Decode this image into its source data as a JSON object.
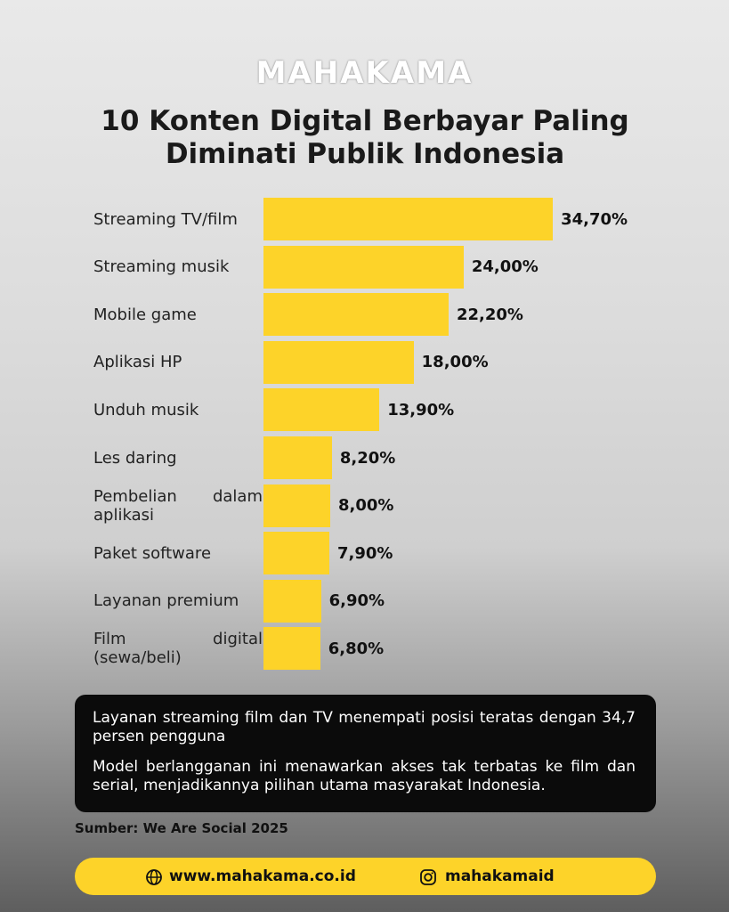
{
  "brand": "MAHAKAMA",
  "chart_data": {
    "type": "bar",
    "orientation": "horizontal",
    "title": "10 Konten Digital Berbayar Paling Diminati Publik Indonesia",
    "categories": [
      "Streaming TV/film",
      "Streaming musik",
      "Mobile game",
      "Aplikasi HP",
      "Unduh musik",
      "Les daring",
      "Pembelian dalam aplikasi",
      "Paket software",
      "Layanan premium",
      "Film digital (sewa/beli)"
    ],
    "values": [
      34.7,
      24.0,
      22.2,
      18.0,
      13.9,
      8.2,
      8.0,
      7.9,
      6.9,
      6.8
    ],
    "value_labels": [
      "34,70%",
      "24,00%",
      "22,20%",
      "18,00%",
      "13,90%",
      "8,20%",
      "8,00%",
      "7,90%",
      "6,90%",
      "6,80%"
    ],
    "color": "#fdd329"
  },
  "notes": [
    "Layanan streaming film dan TV menempati posisi teratas dengan 34,7 persen pengguna",
    "Model berlangganan ini menawarkan akses tak terbatas ke film dan serial, menjadikannya pilihan utama masyarakat Indonesia."
  ],
  "source": "Sumber: We Are Social 2025",
  "footer": {
    "website": "www.mahakama.co.id",
    "instagram": "mahakamaid"
  }
}
